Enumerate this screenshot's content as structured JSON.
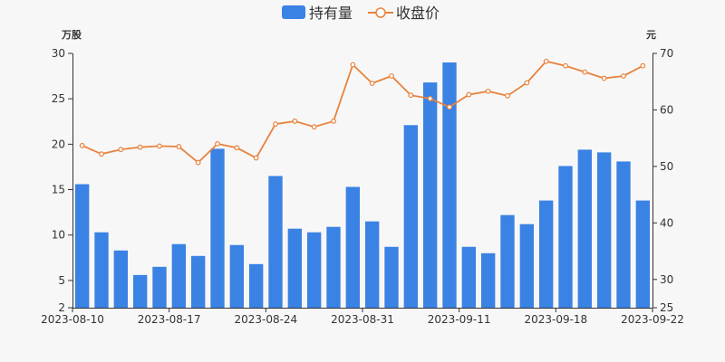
{
  "chart_data": {
    "type": "bar+line",
    "legend": {
      "position": "top-center",
      "items": [
        {
          "name": "持有量",
          "color": "#3a82e4",
          "kind": "bar"
        },
        {
          "name": "收盘价",
          "color": "#e8823c",
          "kind": "line"
        }
      ]
    },
    "left_axis": {
      "unit": "万股",
      "ticks": [
        2,
        5,
        10,
        15,
        20,
        25,
        30
      ],
      "range": [
        2,
        30
      ]
    },
    "right_axis": {
      "unit": "元",
      "ticks": [
        25,
        30,
        40,
        50,
        60,
        70
      ],
      "range": [
        25,
        70
      ]
    },
    "x_tick_labels": [
      "2023-08-10",
      "2023-08-17",
      "2023-08-24",
      "2023-08-31",
      "2023-09-11",
      "2023-09-18",
      "2023-09-22"
    ],
    "x_tick_positions": [
      0,
      5,
      10,
      15,
      20,
      25,
      30
    ],
    "series": [
      {
        "name": "持有量",
        "axis": "left",
        "color": "#3a82e4",
        "values": [
          15.6,
          10.3,
          8.3,
          5.6,
          6.5,
          9.0,
          7.7,
          19.5,
          8.9,
          6.8,
          16.5,
          10.7,
          10.3,
          10.9,
          15.3,
          11.5,
          8.7,
          22.1,
          26.8,
          29.0,
          8.7,
          8.0,
          12.2,
          11.2,
          13.8,
          17.6,
          19.4,
          19.1,
          18.1,
          13.8
        ]
      },
      {
        "name": "收盘价",
        "axis": "right",
        "color": "#e8823c",
        "values": [
          53.7,
          52.2,
          53.0,
          53.4,
          53.6,
          53.5,
          50.7,
          54.0,
          53.3,
          51.5,
          57.5,
          58.0,
          57.0,
          58.0,
          68.0,
          64.7,
          66.0,
          62.6,
          62.0,
          60.5,
          62.7,
          63.3,
          62.5,
          64.8,
          68.6,
          67.8,
          66.7,
          65.6,
          66.0,
          67.8
        ]
      }
    ]
  }
}
